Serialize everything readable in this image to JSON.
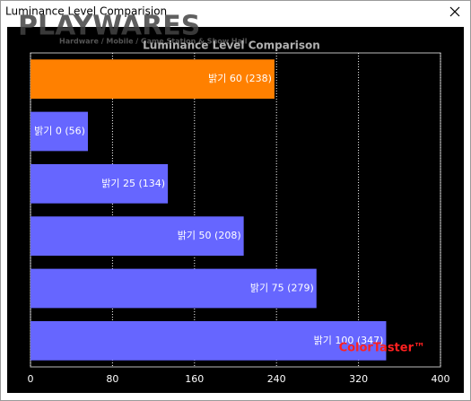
{
  "window_title": "Luminance Level Comparision",
  "watermark": "PLAYWARES",
  "watermark_subtitle": "Hardware / Mobile / Game Station & Show Hall",
  "brand": "ColorTaster™",
  "chart_data": {
    "type": "barh",
    "title": "Luminance Level Comparison",
    "categories": [
      "밝기 60",
      "밝기 0",
      "밝기 25",
      "밝기 50",
      "밝기 75",
      "밝기 100"
    ],
    "values": [
      238,
      56,
      134,
      208,
      279,
      347
    ],
    "value_labels": [
      "(238)",
      "(56)",
      "(134)",
      "(208)",
      "(279)",
      "(347)"
    ],
    "colors": [
      "#ff8000",
      "#6666ff",
      "#6666ff",
      "#6666ff",
      "#6666ff",
      "#6666ff"
    ],
    "xlim": [
      0,
      400
    ],
    "xticks": [
      0,
      80,
      160,
      240,
      320,
      400
    ],
    "grid": true
  }
}
